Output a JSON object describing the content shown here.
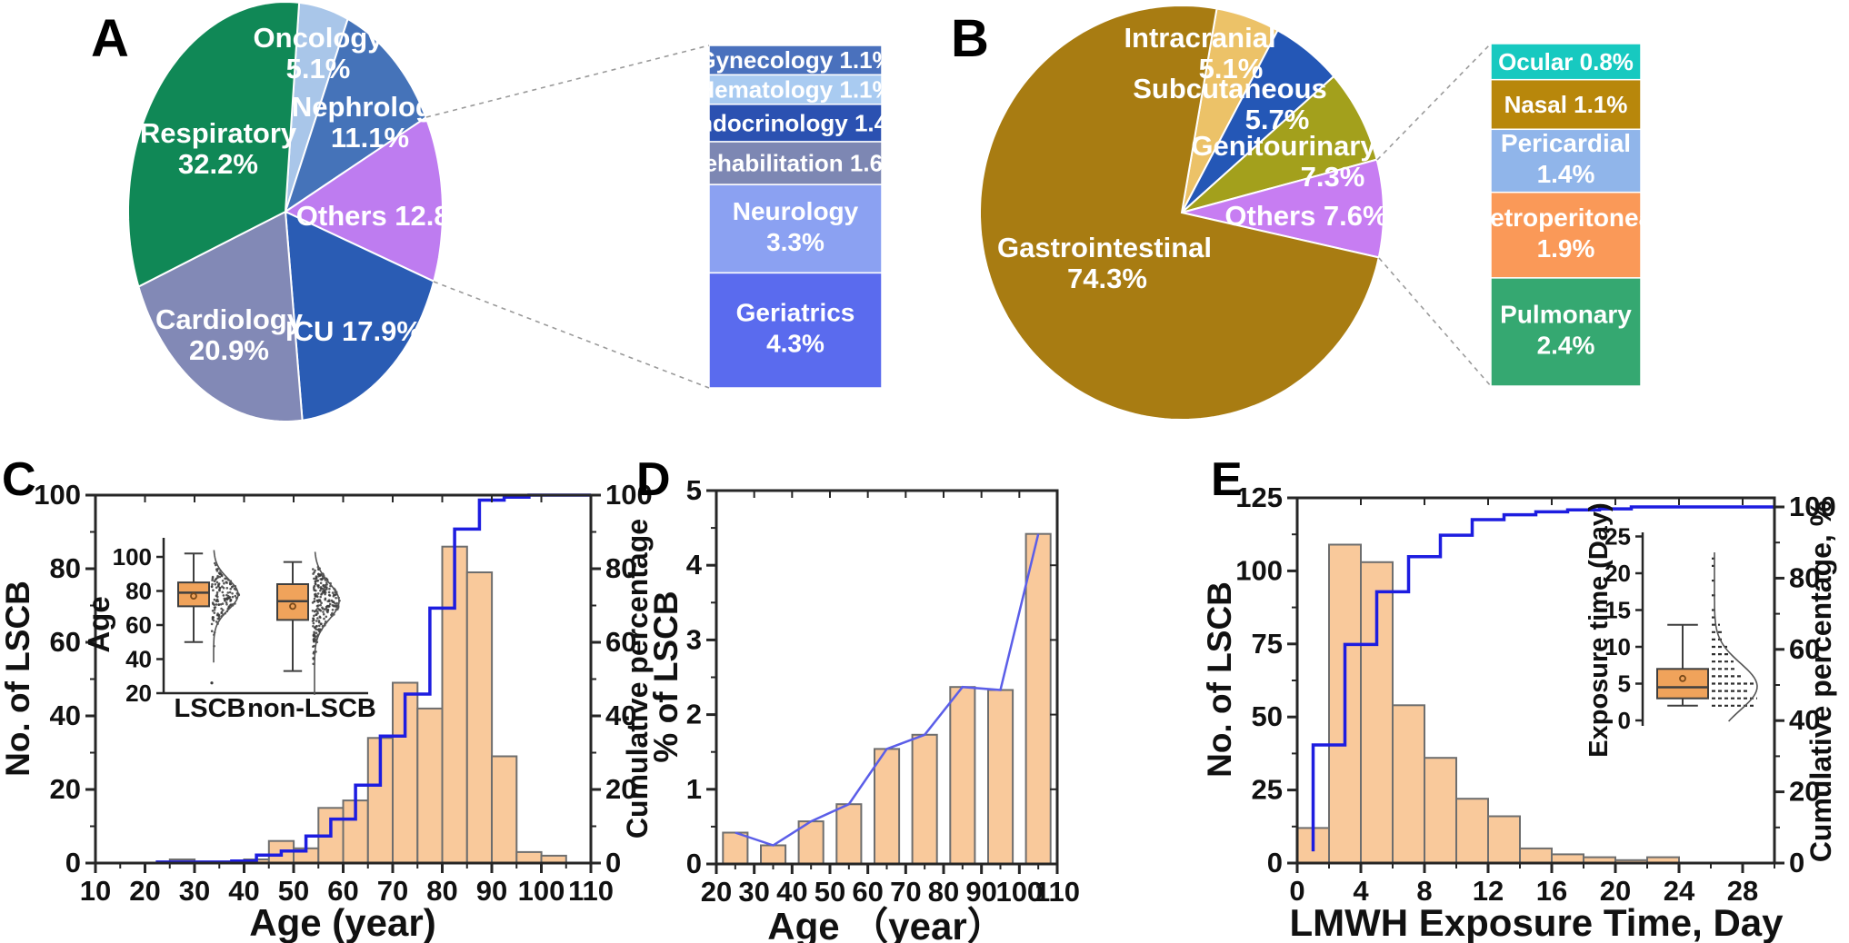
{
  "panel_labels": {
    "A": "A",
    "B": "B",
    "C": "C",
    "D": "D",
    "E": "E"
  },
  "colors": {
    "hist_bar_fill": "#f9c99b",
    "hist_bar_edge": "#6e6e6e",
    "cumulative_line": "#1d1de0",
    "d_line": "#5b5ee8",
    "box_fill": "#f0a35b",
    "box_edge": "#3f3f3f",
    "scatter_dot": "#3b3b3b",
    "violin_curve": "#555555",
    "connector": "#9a9a9a",
    "axis": "#262626",
    "text": "#111111"
  },
  "chart_data": [
    {
      "id": "A",
      "type": "pie",
      "start_angle_deg": -85,
      "slices": [
        {
          "label": "Oncology",
          "value": 5.1,
          "color": "#a9c6e9"
        },
        {
          "label": "Nephrology",
          "value": 11.1,
          "color": "#4573b9"
        },
        {
          "label": "Others",
          "value": 12.8,
          "color": "#be7cf0"
        },
        {
          "label": "ICU",
          "value": 17.9,
          "color": "#2a5cb4"
        },
        {
          "label": "Cardiology",
          "value": 20.9,
          "color": "#8289b6"
        },
        {
          "label": "Respiratory",
          "value": 32.2,
          "color": "#108856"
        }
      ],
      "breakout": {
        "segments": [
          {
            "label": "Gynecology",
            "value": 1.1,
            "color": "#4a71bd"
          },
          {
            "label": "Hematology",
            "value": 1.1,
            "color": "#a9cbf1"
          },
          {
            "label": "Endocrinology",
            "value": 1.4,
            "color": "#2b51b1"
          },
          {
            "label": "Rehabilitation",
            "value": 1.6,
            "color": "#7d87b3"
          },
          {
            "label": "Neurology",
            "value": 3.3,
            "color": "#8ba1f2"
          },
          {
            "label": "Geriatrics",
            "value": 4.3,
            "color": "#5a6bee"
          }
        ]
      }
    },
    {
      "id": "B",
      "type": "pie",
      "start_angle_deg": -80,
      "slices": [
        {
          "label": "Intracranial",
          "value": 5.1,
          "color": "#ecc268"
        },
        {
          "label": "Subcutaneous",
          "value": 5.7,
          "color": "#2457b6"
        },
        {
          "label": "Genitourinary",
          "value": 7.3,
          "color": "#a3a01c"
        },
        {
          "label": "Others",
          "value": 7.6,
          "color": "#c77df2"
        },
        {
          "label": "Gastrointestinal",
          "value": 74.3,
          "color": "#a87c12"
        }
      ],
      "breakout": {
        "segments": [
          {
            "label": "Ocular",
            "value": 0.8,
            "color": "#17c9c0"
          },
          {
            "label": "Nasal",
            "value": 1.1,
            "color": "#b8870b"
          },
          {
            "label": "Pericardial",
            "value": 1.4,
            "color": "#90b5ea"
          },
          {
            "label": "Retroperitoneal",
            "value": 1.9,
            "color": "#fa9958"
          },
          {
            "label": "Pulmonary",
            "value": 2.4,
            "color": "#35a871"
          }
        ]
      }
    },
    {
      "id": "C",
      "type": "histogram_cumulative",
      "xlabel": "Age (year)",
      "ylabel_left": "No. of LSCB",
      "ylabel_right": "Cumulative percentage",
      "xlim": [
        10,
        110
      ],
      "xticks": [
        10,
        20,
        30,
        40,
        50,
        60,
        70,
        80,
        90,
        100,
        110
      ],
      "x_minor_step": 5,
      "ylim_left": [
        0,
        100
      ],
      "yticks_left": [
        0,
        20,
        40,
        60,
        80,
        100
      ],
      "y_left_minor_step": 10,
      "ylim_right": [
        0,
        100
      ],
      "yticks_right": [
        0,
        20,
        40,
        60,
        80,
        100
      ],
      "y_right_minor_step": 10,
      "bin_width": 5,
      "bars": [
        [
          25,
          1
        ],
        [
          40,
          1
        ],
        [
          45,
          6
        ],
        [
          50,
          4
        ],
        [
          55,
          15
        ],
        [
          60,
          17
        ],
        [
          65,
          34
        ],
        [
          70,
          49
        ],
        [
          75,
          42
        ],
        [
          80,
          86
        ],
        [
          85,
          79
        ],
        [
          90,
          29
        ],
        [
          95,
          3
        ],
        [
          100,
          2
        ]
      ],
      "inset": {
        "ylabel": "Age",
        "yticks": [
          20,
          40,
          60,
          80,
          100
        ],
        "groups": [
          {
            "label": "LSCB",
            "min": 50,
            "q1": 71,
            "median": 79,
            "q3": 85,
            "max": 102,
            "mean": 77
          },
          {
            "label": "non-LSCB",
            "min": 33,
            "q1": 63,
            "median": 74,
            "q3": 84,
            "max": 97,
            "mean": 71
          }
        ]
      }
    },
    {
      "id": "D",
      "type": "bar_line",
      "xlabel": "Age （year）",
      "ylabel": "% of LSCB",
      "xlim": [
        20,
        110
      ],
      "xticks": [
        20,
        30,
        40,
        50,
        60,
        70,
        80,
        90,
        100,
        110
      ],
      "x_minor_step": 5,
      "ylim": [
        0,
        5
      ],
      "yticks": [
        0,
        1,
        2,
        3,
        4,
        5
      ],
      "y_minor_step": 0.5,
      "bar_width_units": 6.5,
      "bars": [
        [
          25,
          0.42
        ],
        [
          35,
          0.25
        ],
        [
          45,
          0.57
        ],
        [
          55,
          0.8
        ],
        [
          65,
          1.54
        ],
        [
          75,
          1.73
        ],
        [
          85,
          2.37
        ],
        [
          95,
          2.33
        ],
        [
          105,
          4.42
        ]
      ]
    },
    {
      "id": "E",
      "type": "histogram_cumulative",
      "xlabel": "LMWH Exposure Time, Day",
      "ylabel_left": "No. of LSCB",
      "ylabel_right": "Cumulative percentage, %",
      "xlim": [
        0,
        30
      ],
      "xticks": [
        0,
        4,
        8,
        12,
        16,
        20,
        24,
        28
      ],
      "x_minor_step": 2,
      "ylim_left": [
        0,
        125
      ],
      "yticks_left": [
        0,
        25,
        50,
        75,
        100,
        125
      ],
      "y_left_minor_step": 12.5,
      "ylim_right": [
        0,
        100
      ],
      "yticks_right": [
        0,
        20,
        40,
        60,
        80,
        100
      ],
      "y_right_minor_step": 10,
      "bin_width": 2,
      "bars": [
        [
          0,
          12
        ],
        [
          2,
          109
        ],
        [
          4,
          103
        ],
        [
          6,
          54
        ],
        [
          8,
          36
        ],
        [
          10,
          22
        ],
        [
          12,
          16
        ],
        [
          14,
          5
        ],
        [
          16,
          3
        ],
        [
          18,
          2
        ],
        [
          20,
          1
        ],
        [
          22,
          2
        ]
      ],
      "inset": {
        "ylabel": "Exposure time (Day)",
        "yticks": [
          0,
          5,
          10,
          15,
          20,
          25
        ],
        "groups": [
          {
            "label": "",
            "min": 2,
            "q1": 3,
            "median": 4.5,
            "q3": 7,
            "max": 13,
            "mean": 5.7
          }
        ]
      }
    }
  ]
}
